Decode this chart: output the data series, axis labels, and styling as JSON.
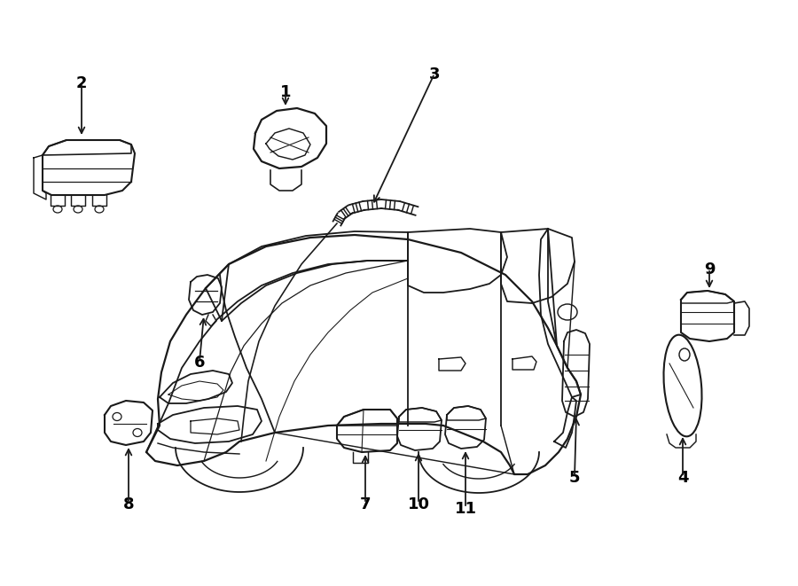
{
  "background_color": "#ffffff",
  "line_color": "#1a1a1a",
  "label_color": "#000000",
  "figure_width": 9.0,
  "figure_height": 6.61,
  "dpi": 100
}
